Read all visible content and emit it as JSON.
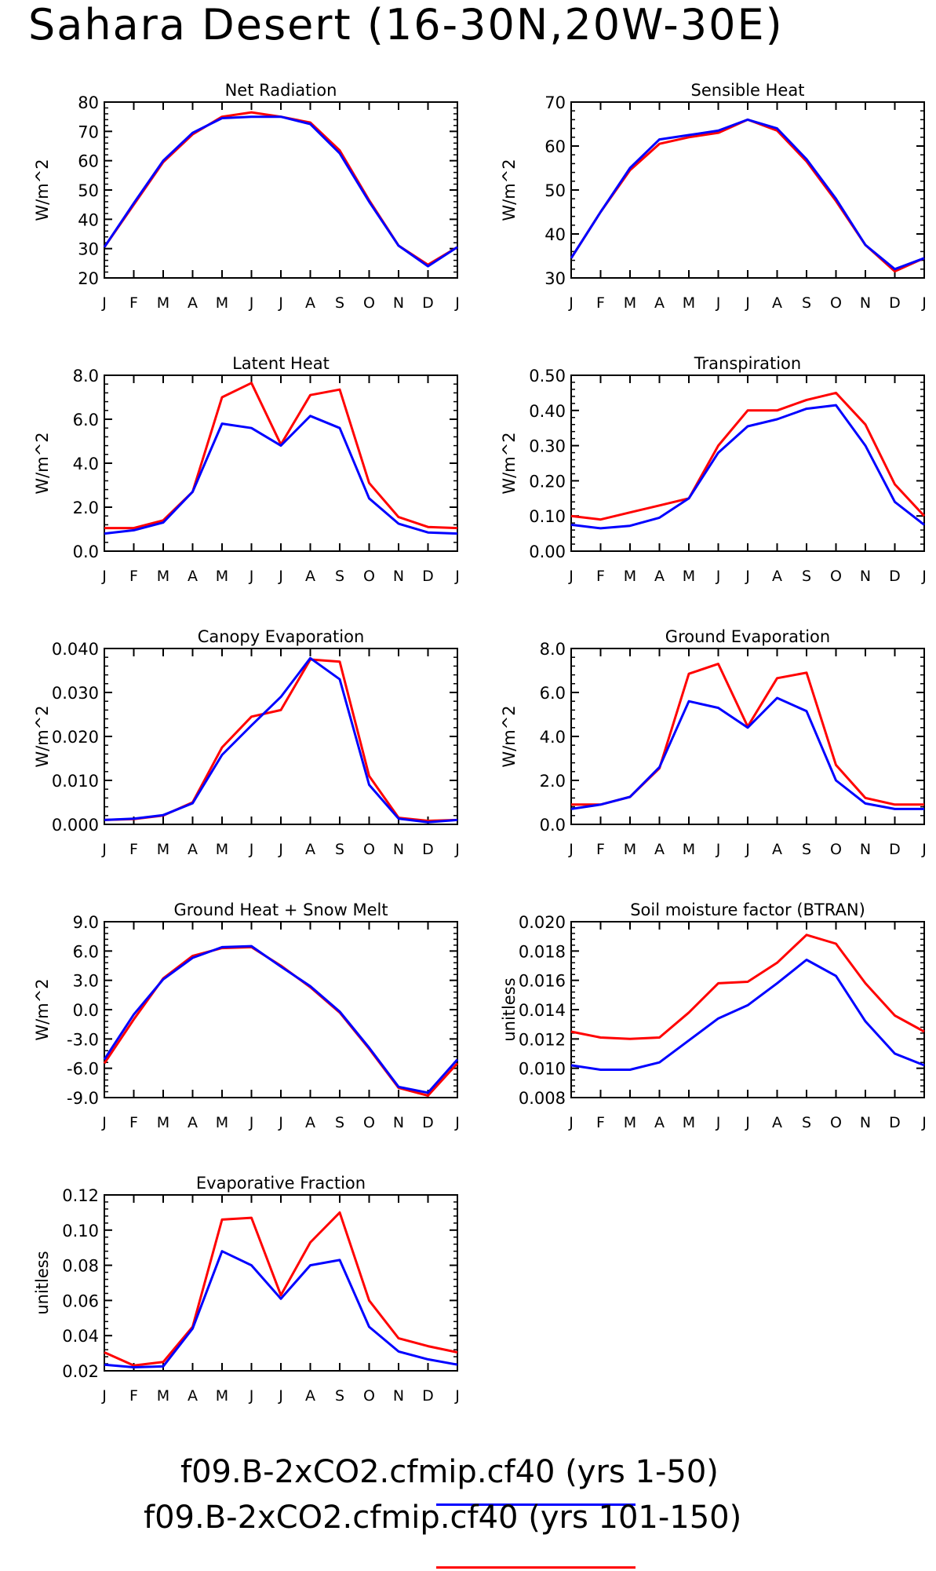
{
  "page": {
    "title": "Sahara Desert (16-30N,20W-30E)"
  },
  "months": [
    "J",
    "F",
    "M",
    "A",
    "M",
    "J",
    "J",
    "A",
    "S",
    "O",
    "N",
    "D",
    "J"
  ],
  "legend": [
    {
      "label": "f09.B-2xCO2.cfmip.cf40 (yrs 1-50)",
      "color": "#0000ff"
    },
    {
      "label": "f09.B-2xCO2.cfmip.cf40 (yrs 101-150)",
      "color": "#ff0000"
    }
  ],
  "chart_data": [
    {
      "type": "line",
      "title": "Net Radiation",
      "ylabel": "W/m^2",
      "ylim": [
        20,
        80
      ],
      "yticks": [
        20,
        30,
        40,
        50,
        60,
        70,
        80
      ],
      "ytick_labels": [
        "20",
        "30",
        "40",
        "50",
        "60",
        "70",
        "80"
      ],
      "series": [
        {
          "color": "#ff0000",
          "values": [
            30.5,
            45,
            59.5,
            69,
            75,
            76.5,
            75,
            73,
            63.5,
            46.5,
            31,
            24.5,
            30.5
          ]
        },
        {
          "color": "#0000ff",
          "values": [
            30.5,
            45.5,
            60,
            69.5,
            74.5,
            75,
            75,
            72.5,
            62.5,
            46,
            31,
            24,
            30.5
          ]
        }
      ]
    },
    {
      "type": "line",
      "title": "Sensible Heat",
      "ylabel": "W/m^2",
      "ylim": [
        30,
        70
      ],
      "yticks": [
        30,
        40,
        50,
        60,
        70
      ],
      "ytick_labels": [
        "30",
        "40",
        "50",
        "60",
        "70"
      ],
      "series": [
        {
          "color": "#ff0000",
          "values": [
            34.5,
            45,
            54.5,
            60.5,
            62,
            63,
            66,
            63.5,
            56.5,
            47.5,
            37.5,
            31.5,
            34.5
          ]
        },
        {
          "color": "#0000ff",
          "values": [
            34.5,
            45,
            55,
            61.5,
            62.5,
            63.5,
            66,
            64,
            57,
            48,
            37.5,
            32,
            34.5
          ]
        }
      ]
    },
    {
      "type": "line",
      "title": "Latent Heat",
      "ylabel": "W/m^2",
      "ylim": [
        0,
        8
      ],
      "yticks": [
        0,
        2,
        4,
        6,
        8
      ],
      "ytick_labels": [
        "0.0",
        "2.0",
        "4.0",
        "6.0",
        "8.0"
      ],
      "series": [
        {
          "color": "#ff0000",
          "values": [
            1.05,
            1.05,
            1.4,
            2.7,
            7.0,
            7.65,
            4.85,
            7.1,
            7.35,
            3.1,
            1.55,
            1.1,
            1.05
          ]
        },
        {
          "color": "#0000ff",
          "values": [
            0.8,
            0.95,
            1.3,
            2.7,
            5.8,
            5.6,
            4.8,
            6.15,
            5.6,
            2.4,
            1.25,
            0.85,
            0.8
          ]
        }
      ]
    },
    {
      "type": "line",
      "title": "Transpiration",
      "ylabel": "W/m^2",
      "ylim": [
        0,
        0.5
      ],
      "yticks": [
        0,
        0.1,
        0.2,
        0.3,
        0.4,
        0.5
      ],
      "ytick_labels": [
        "0.00",
        "0.10",
        "0.20",
        "0.30",
        "0.40",
        "0.50"
      ],
      "series": [
        {
          "color": "#ff0000",
          "values": [
            0.1,
            0.09,
            0.11,
            0.13,
            0.15,
            0.3,
            0.4,
            0.4,
            0.43,
            0.45,
            0.36,
            0.19,
            0.1
          ]
        },
        {
          "color": "#0000ff",
          "values": [
            0.075,
            0.065,
            0.072,
            0.095,
            0.15,
            0.28,
            0.355,
            0.375,
            0.405,
            0.415,
            0.3,
            0.14,
            0.075
          ]
        }
      ]
    },
    {
      "type": "line",
      "title": "Canopy Evaporation",
      "ylabel": "W/m^2",
      "ylim": [
        0,
        0.04
      ],
      "yticks": [
        0,
        0.01,
        0.02,
        0.03,
        0.04
      ],
      "ytick_labels": [
        "0.000",
        "0.010",
        "0.020",
        "0.030",
        "0.040"
      ],
      "series": [
        {
          "color": "#ff0000",
          "values": [
            0.001,
            0.0012,
            0.002,
            0.005,
            0.0175,
            0.0245,
            0.026,
            0.0375,
            0.037,
            0.011,
            0.0015,
            0.0008,
            0.001
          ]
        },
        {
          "color": "#0000ff",
          "values": [
            0.001,
            0.0013,
            0.0021,
            0.0048,
            0.0158,
            0.0225,
            0.029,
            0.0378,
            0.033,
            0.009,
            0.0013,
            0.0005,
            0.001
          ]
        }
      ]
    },
    {
      "type": "line",
      "title": "Ground Evaporation",
      "ylabel": "W/m^2",
      "ylim": [
        0,
        8
      ],
      "yticks": [
        0,
        2,
        4,
        6,
        8
      ],
      "ytick_labels": [
        "0.0",
        "2.0",
        "4.0",
        "6.0",
        "8.0"
      ],
      "series": [
        {
          "color": "#ff0000",
          "values": [
            0.9,
            0.9,
            1.25,
            2.55,
            6.85,
            7.3,
            4.45,
            6.65,
            6.9,
            2.7,
            1.2,
            0.9,
            0.9
          ]
        },
        {
          "color": "#0000ff",
          "values": [
            0.7,
            0.9,
            1.25,
            2.6,
            5.6,
            5.3,
            4.4,
            5.75,
            5.15,
            2.0,
            0.95,
            0.7,
            0.7
          ]
        }
      ]
    },
    {
      "type": "line",
      "title": "Ground Heat + Snow Melt",
      "ylabel": "W/m^2",
      "ylim": [
        -9,
        9
      ],
      "yticks": [
        -9,
        -6,
        -3,
        0,
        3,
        6,
        9
      ],
      "ytick_labels": [
        "-9.0",
        "-6.0",
        "-3.0",
        "0.0",
        "3.0",
        "6.0",
        "9.0"
      ],
      "series": [
        {
          "color": "#ff0000",
          "values": [
            -5.5,
            -1.0,
            3.2,
            5.5,
            6.3,
            6.4,
            4.5,
            2.3,
            -0.3,
            -4.0,
            -8.0,
            -8.8,
            -5.5
          ]
        },
        {
          "color": "#0000ff",
          "values": [
            -5.1,
            -0.5,
            3.1,
            5.3,
            6.4,
            6.5,
            4.4,
            2.4,
            -0.2,
            -3.9,
            -7.9,
            -8.5,
            -5.1
          ]
        }
      ]
    },
    {
      "type": "line",
      "title": "Soil moisture factor (BTRAN)",
      "ylabel": "unitless",
      "ylim": [
        0.008,
        0.02
      ],
      "yticks": [
        0.008,
        0.01,
        0.012,
        0.014,
        0.016,
        0.018,
        0.02
      ],
      "ytick_labels": [
        "0.008",
        "0.010",
        "0.012",
        "0.014",
        "0.016",
        "0.018",
        "0.020"
      ],
      "series": [
        {
          "color": "#ff0000",
          "values": [
            0.0125,
            0.0121,
            0.012,
            0.0121,
            0.0138,
            0.0158,
            0.0159,
            0.0172,
            0.0191,
            0.0185,
            0.0158,
            0.0136,
            0.0125
          ]
        },
        {
          "color": "#0000ff",
          "values": [
            0.0102,
            0.0099,
            0.0099,
            0.0104,
            0.0119,
            0.0134,
            0.0143,
            0.0158,
            0.0174,
            0.0163,
            0.0132,
            0.011,
            0.0102
          ]
        }
      ]
    },
    {
      "type": "line",
      "title": "Evaporative Fraction",
      "ylabel": "unitless",
      "ylim": [
        0.02,
        0.12
      ],
      "yticks": [
        0.02,
        0.04,
        0.06,
        0.08,
        0.1,
        0.12
      ],
      "ytick_labels": [
        "0.02",
        "0.04",
        "0.06",
        "0.08",
        "0.10",
        "0.12"
      ],
      "series": [
        {
          "color": "#ff0000",
          "values": [
            0.0305,
            0.023,
            0.025,
            0.045,
            0.106,
            0.107,
            0.063,
            0.093,
            0.11,
            0.06,
            0.0385,
            0.034,
            0.0305
          ]
        },
        {
          "color": "#0000ff",
          "values": [
            0.0235,
            0.022,
            0.0225,
            0.044,
            0.088,
            0.08,
            0.061,
            0.08,
            0.083,
            0.045,
            0.031,
            0.0265,
            0.0235
          ]
        }
      ]
    }
  ]
}
